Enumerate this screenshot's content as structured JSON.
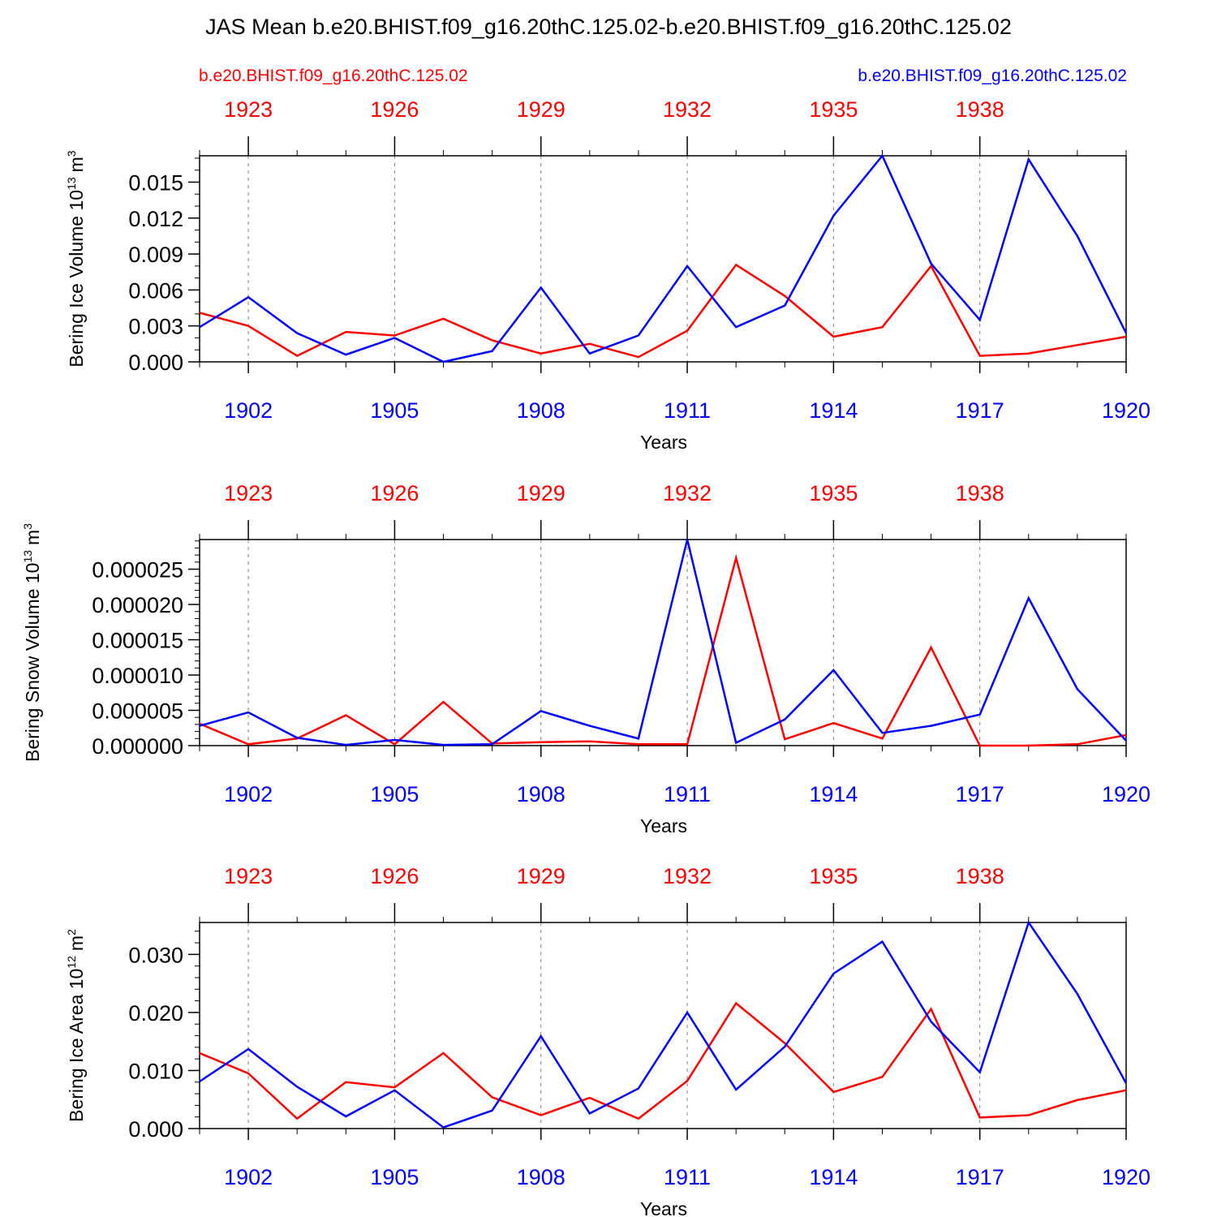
{
  "title": "JAS Mean b.e20.BHIST.f09_g16.20thC.125.02-b.e20.BHIST.f09_g16.20thC.125.02",
  "legend": {
    "left": "b.e20.BHIST.f09_g16.20thC.125.02",
    "right": "b.e20.BHIST.f09_g16.20thC.125.02"
  },
  "colors": {
    "red": "#ff0000",
    "blue": "#0000ff",
    "axis": "#000000",
    "grid": "#808080"
  },
  "chart_data": [
    {
      "type": "line",
      "title": "",
      "ylabel": "Bering Ice Volume 10",
      "ylabel_sup": "13",
      "ylabel_unit": "m",
      "ylabel_unit_sup": "3",
      "xlabel": "Years",
      "ylim": [
        0,
        0.0172
      ],
      "yticks": [
        0.0,
        0.003,
        0.006,
        0.009,
        0.012,
        0.015
      ],
      "ytick_labels": [
        "0.000",
        "0.003",
        "0.006",
        "0.009",
        "0.012",
        "0.015"
      ],
      "yminor": 0.001,
      "bottom_axis": {
        "range": [
          1901,
          1920
        ],
        "ticks": [
          1902,
          1905,
          1908,
          1911,
          1914,
          1917,
          1920
        ],
        "labels": [
          "1902",
          "1905",
          "1908",
          "1911",
          "1914",
          "1917",
          "1920"
        ]
      },
      "top_axis": {
        "range": [
          1922,
          1941
        ],
        "ticks": [
          1923,
          1926,
          1929,
          1932,
          1935,
          1938
        ],
        "labels": [
          "1923",
          "1926",
          "1929",
          "1932",
          "1935",
          "1938"
        ]
      },
      "series": [
        {
          "name": "b.e20.BHIST.f09_g16.20thC.125.02",
          "axis": "top",
          "color": "#ff0000",
          "x": [
            1922,
            1923,
            1924,
            1925,
            1926,
            1927,
            1928,
            1929,
            1930,
            1931,
            1932,
            1933,
            1934,
            1935,
            1936,
            1937,
            1938,
            1939,
            1940,
            1941
          ],
          "values": [
            0.0041,
            0.003,
            0.0005,
            0.0025,
            0.0022,
            0.0036,
            0.0018,
            0.0007,
            0.0015,
            0.0004,
            0.0026,
            0.0081,
            0.0055,
            0.0021,
            0.0029,
            0.008,
            0.0005,
            0.0007,
            0.0014,
            0.0021
          ]
        },
        {
          "name": "b.e20.BHIST.f09_g16.20thC.125.02",
          "axis": "bottom",
          "color": "#0000ff",
          "x": [
            1901,
            1902,
            1903,
            1904,
            1905,
            1906,
            1907,
            1908,
            1909,
            1910,
            1911,
            1912,
            1913,
            1914,
            1915,
            1916,
            1917,
            1918,
            1919,
            1920
          ],
          "values": [
            0.0029,
            0.0054,
            0.0024,
            0.0006,
            0.002,
            0.0,
            0.0009,
            0.0062,
            0.0007,
            0.0022,
            0.008,
            0.0029,
            0.0047,
            0.0122,
            0.0172,
            0.0082,
            0.0035,
            0.0169,
            0.0105,
            0.0024
          ]
        }
      ]
    },
    {
      "type": "line",
      "title": "",
      "ylabel": "Bering Snow Volume 10",
      "ylabel_sup": "13",
      "ylabel_unit": "m",
      "ylabel_unit_sup": "3",
      "xlabel": "Years",
      "ylim": [
        0,
        2.92e-05
      ],
      "yticks": [
        0.0,
        5e-06,
        1e-05,
        1.5e-05,
        2e-05,
        2.5e-05
      ],
      "ytick_labels": [
        "0.000000",
        "0.000005",
        "0.000010",
        "0.000015",
        "0.000020",
        "0.000025"
      ],
      "yminor": 1e-06,
      "bottom_axis": {
        "range": [
          1901,
          1920
        ],
        "ticks": [
          1902,
          1905,
          1908,
          1911,
          1914,
          1917,
          1920
        ],
        "labels": [
          "1902",
          "1905",
          "1908",
          "1911",
          "1914",
          "1917",
          "1920"
        ]
      },
      "top_axis": {
        "range": [
          1922,
          1941
        ],
        "ticks": [
          1923,
          1926,
          1929,
          1932,
          1935,
          1938
        ],
        "labels": [
          "1923",
          "1926",
          "1929",
          "1932",
          "1935",
          "1938"
        ]
      },
      "series": [
        {
          "name": "b.e20.BHIST.f09_g16.20thC.125.02",
          "axis": "top",
          "color": "#ff0000",
          "x": [
            1922,
            1923,
            1924,
            1925,
            1926,
            1927,
            1928,
            1929,
            1930,
            1931,
            1932,
            1933,
            1934,
            1935,
            1936,
            1937,
            1938,
            1939,
            1940,
            1941
          ],
          "values": [
            3.1e-06,
            2e-07,
            1e-06,
            4.3e-06,
            2e-07,
            6.2e-06,
            3e-07,
            5e-07,
            6e-07,
            2e-07,
            2e-07,
            2.66e-05,
            9e-07,
            3.2e-06,
            1e-06,
            1.39e-05,
            0.0,
            0.0,
            2e-07,
            1.5e-06
          ]
        },
        {
          "name": "b.e20.BHIST.f09_g16.20thC.125.02",
          "axis": "bottom",
          "color": "#0000ff",
          "x": [
            1901,
            1902,
            1903,
            1904,
            1905,
            1906,
            1907,
            1908,
            1909,
            1910,
            1911,
            1912,
            1913,
            1914,
            1915,
            1916,
            1917,
            1918,
            1919,
            1920
          ],
          "values": [
            2.8e-06,
            4.7e-06,
            1.1e-06,
            1e-07,
            8e-07,
            1e-07,
            2e-07,
            4.9e-06,
            2.8e-06,
            1e-06,
            2.92e-05,
            4e-07,
            3.7e-06,
            1.07e-05,
            1.8e-06,
            2.8e-06,
            4.4e-06,
            2.09e-05,
            8e-06,
            7e-07
          ]
        }
      ]
    },
    {
      "type": "line",
      "title": "",
      "ylabel": "Bering Ice Area 10",
      "ylabel_sup": "12",
      "ylabel_unit": "m",
      "ylabel_unit_sup": "2",
      "xlabel": "Years",
      "ylim": [
        0,
        0.0355
      ],
      "yticks": [
        0.0,
        0.01,
        0.02,
        0.03
      ],
      "ytick_labels": [
        "0.000",
        "0.010",
        "0.020",
        "0.030"
      ],
      "yminor": 0.002,
      "bottom_axis": {
        "range": [
          1901,
          1920
        ],
        "ticks": [
          1902,
          1905,
          1908,
          1911,
          1914,
          1917,
          1920
        ],
        "labels": [
          "1902",
          "1905",
          "1908",
          "1911",
          "1914",
          "1917",
          "1920"
        ]
      },
      "top_axis": {
        "range": [
          1922,
          1941
        ],
        "ticks": [
          1923,
          1926,
          1929,
          1932,
          1935,
          1938
        ],
        "labels": [
          "1923",
          "1926",
          "1929",
          "1932",
          "1935",
          "1938"
        ]
      },
      "series": [
        {
          "name": "b.e20.BHIST.f09_g16.20thC.125.02",
          "axis": "top",
          "color": "#ff0000",
          "x": [
            1922,
            1923,
            1924,
            1925,
            1926,
            1927,
            1928,
            1929,
            1930,
            1931,
            1932,
            1933,
            1934,
            1935,
            1936,
            1937,
            1938,
            1939,
            1940,
            1941
          ],
          "values": [
            0.013,
            0.0095,
            0.0017,
            0.008,
            0.0071,
            0.013,
            0.0054,
            0.0023,
            0.0053,
            0.0017,
            0.0082,
            0.0216,
            0.0147,
            0.0063,
            0.0089,
            0.0206,
            0.0019,
            0.0023,
            0.0049,
            0.0066
          ]
        },
        {
          "name": "b.e20.BHIST.f09_g16.20thC.125.02",
          "axis": "bottom",
          "color": "#0000ff",
          "x": [
            1901,
            1902,
            1903,
            1904,
            1905,
            1906,
            1907,
            1908,
            1909,
            1910,
            1911,
            1912,
            1913,
            1914,
            1915,
            1916,
            1917,
            1918,
            1919,
            1920
          ],
          "values": [
            0.0081,
            0.0137,
            0.0072,
            0.0021,
            0.0066,
            0.0002,
            0.0031,
            0.0159,
            0.0026,
            0.0069,
            0.02,
            0.0067,
            0.0141,
            0.0267,
            0.0322,
            0.0184,
            0.0097,
            0.0355,
            0.0232,
            0.0078
          ]
        }
      ]
    }
  ]
}
